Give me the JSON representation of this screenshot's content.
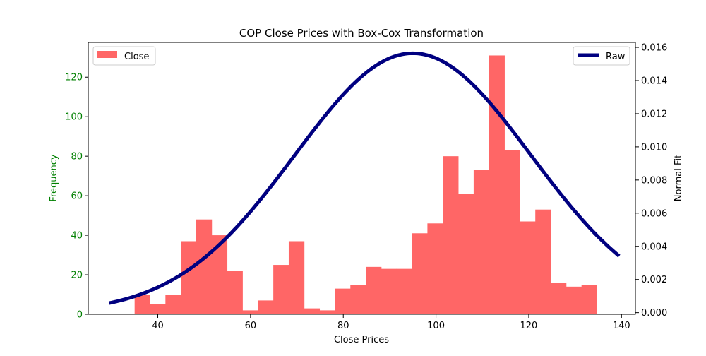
{
  "chart_data": {
    "type": "bar",
    "title": "COP Close Prices with Box-Cox Transformation",
    "xlabel": "Close Prices",
    "ylabel": "Frequency",
    "y2label": "Normal Fit",
    "xlim": [
      25,
      143
    ],
    "ylim": [
      0,
      137.6
    ],
    "y2lim": [
      -0.0001,
      0.0163
    ],
    "x_ticks": [
      40,
      60,
      80,
      100,
      120,
      140
    ],
    "y_ticks": [
      0,
      20,
      40,
      60,
      80,
      100,
      120
    ],
    "y2_ticks": [
      0.0,
      0.002,
      0.004,
      0.006,
      0.008,
      0.01,
      0.012,
      0.014,
      0.016
    ],
    "y2_tick_labels": [
      "0.000",
      "0.002",
      "0.004",
      "0.006",
      "0.008",
      "0.010",
      "0.012",
      "0.014",
      "0.016"
    ],
    "histogram": {
      "name": "Close",
      "color": "#ff6666",
      "bin_start": 35.0,
      "bin_width": 3.3235,
      "counts": [
        10,
        5,
        10,
        37,
        48,
        40,
        22,
        2,
        7,
        25,
        37,
        3,
        2,
        13,
        15,
        24,
        23,
        23,
        41,
        46,
        80,
        61,
        73,
        131,
        83,
        47,
        53,
        16,
        14,
        15
      ]
    },
    "normal_fit": {
      "name": "Raw",
      "color": "#000080",
      "mean": 95.0,
      "std": 25.5,
      "x_range": [
        29.5,
        139.5
      ]
    },
    "legend_left": {
      "label": "Close",
      "placement": "upper-left"
    },
    "legend_right": {
      "label": "Raw",
      "placement": "upper-right"
    },
    "left_axis_color": "#008000",
    "grid": false
  }
}
